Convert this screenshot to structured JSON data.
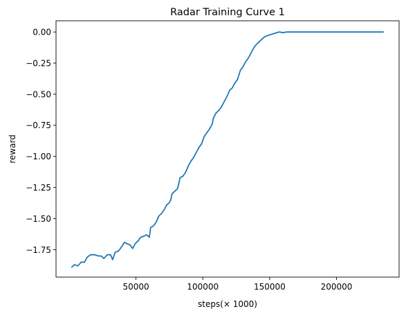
{
  "chart_data": {
    "type": "line",
    "title": "Radar Training Curve 1",
    "xlabel": "steps(× 1000)",
    "ylabel": "reward",
    "xlim": [
      -9800,
      246800
    ],
    "ylim": [
      -1.97,
      0.09
    ],
    "xticks": [
      50000,
      100000,
      150000,
      200000
    ],
    "xtick_labels": [
      "50000",
      "100000",
      "150000",
      "200000"
    ],
    "yticks": [
      0.0,
      -0.25,
      -0.5,
      -0.75,
      -1.0,
      -1.25,
      -1.5,
      -1.75
    ],
    "ytick_labels": [
      "0.00",
      "−0.25",
      "−0.50",
      "−0.75",
      "−1.00",
      "−1.25",
      "−1.50",
      "−1.75"
    ],
    "grid": false,
    "series": [
      {
        "color": "#1f77b4",
        "points": [
          [
            2000,
            -1.89
          ],
          [
            4000,
            -1.87
          ],
          [
            6500,
            -1.88
          ],
          [
            9000,
            -1.85
          ],
          [
            11500,
            -1.85
          ],
          [
            13500,
            -1.81
          ],
          [
            16000,
            -1.79
          ],
          [
            19000,
            -1.79
          ],
          [
            22000,
            -1.8
          ],
          [
            24000,
            -1.8
          ],
          [
            26000,
            -1.82
          ],
          [
            28500,
            -1.79
          ],
          [
            31000,
            -1.79
          ],
          [
            32500,
            -1.83
          ],
          [
            34500,
            -1.77
          ],
          [
            37000,
            -1.76
          ],
          [
            39000,
            -1.73
          ],
          [
            41500,
            -1.69
          ],
          [
            43000,
            -1.7
          ],
          [
            45500,
            -1.71
          ],
          [
            47500,
            -1.74
          ],
          [
            49500,
            -1.7
          ],
          [
            51500,
            -1.68
          ],
          [
            53500,
            -1.65
          ],
          [
            56000,
            -1.64
          ],
          [
            58000,
            -1.63
          ],
          [
            60000,
            -1.65
          ],
          [
            61000,
            -1.57
          ],
          [
            63000,
            -1.56
          ],
          [
            65000,
            -1.53
          ],
          [
            67000,
            -1.48
          ],
          [
            69000,
            -1.46
          ],
          [
            71000,
            -1.43
          ],
          [
            73000,
            -1.39
          ],
          [
            75000,
            -1.37
          ],
          [
            76000,
            -1.35
          ],
          [
            77000,
            -1.3
          ],
          [
            79000,
            -1.28
          ],
          [
            81000,
            -1.26
          ],
          [
            82000,
            -1.22
          ],
          [
            83000,
            -1.17
          ],
          [
            85000,
            -1.16
          ],
          [
            87000,
            -1.13
          ],
          [
            89000,
            -1.08
          ],
          [
            91000,
            -1.04
          ],
          [
            93000,
            -1.01
          ],
          [
            95000,
            -0.97
          ],
          [
            97000,
            -0.93
          ],
          [
            99000,
            -0.9
          ],
          [
            101000,
            -0.84
          ],
          [
            103000,
            -0.81
          ],
          [
            105000,
            -0.78
          ],
          [
            107000,
            -0.74
          ],
          [
            108000,
            -0.69
          ],
          [
            110000,
            -0.65
          ],
          [
            112000,
            -0.63
          ],
          [
            114000,
            -0.6
          ],
          [
            116000,
            -0.56
          ],
          [
            118000,
            -0.52
          ],
          [
            120000,
            -0.47
          ],
          [
            122000,
            -0.45
          ],
          [
            124000,
            -0.41
          ],
          [
            126000,
            -0.38
          ],
          [
            128000,
            -0.31
          ],
          [
            130000,
            -0.28
          ],
          [
            132000,
            -0.24
          ],
          [
            134000,
            -0.21
          ],
          [
            136000,
            -0.17
          ],
          [
            138000,
            -0.13
          ],
          [
            140000,
            -0.1
          ],
          [
            142000,
            -0.08
          ],
          [
            144000,
            -0.06
          ],
          [
            146000,
            -0.04
          ],
          [
            148000,
            -0.03
          ],
          [
            151000,
            -0.02
          ],
          [
            154000,
            -0.01
          ],
          [
            157000,
            0.0
          ],
          [
            160000,
            -0.005
          ],
          [
            163000,
            0.0
          ],
          [
            168000,
            0.0
          ],
          [
            175000,
            0.0
          ],
          [
            185000,
            0.0
          ],
          [
            200000,
            0.0
          ],
          [
            215000,
            0.0
          ],
          [
            235000,
            0.0
          ]
        ]
      }
    ]
  }
}
